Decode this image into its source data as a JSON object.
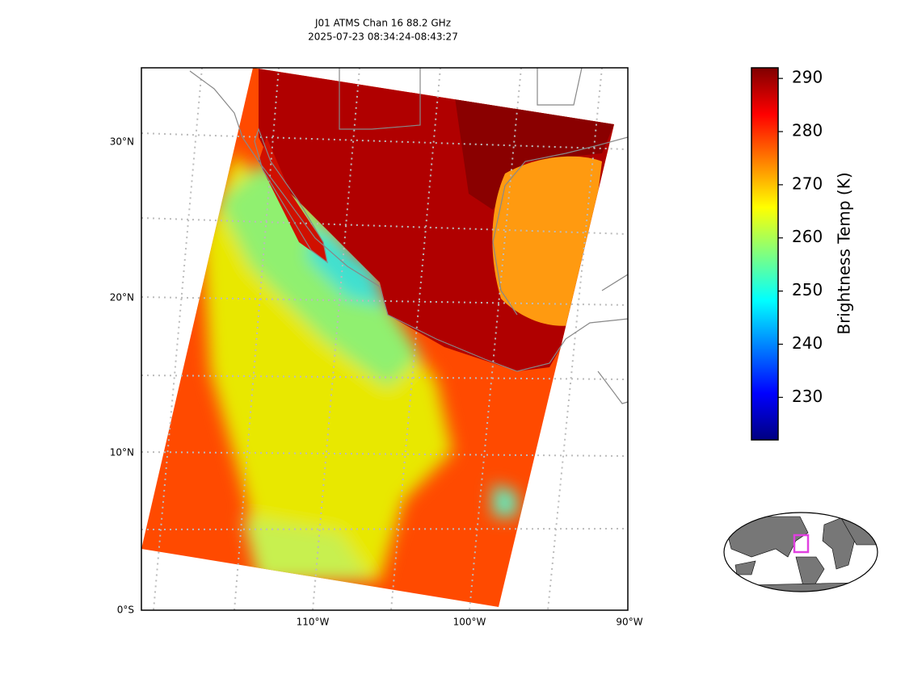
{
  "title": "J01 ATMS Chan 16 88.2 GHz",
  "subtitle": "2025-07-23 08:34:24-08:43:27",
  "map": {
    "lat_labels": [
      "0°S",
      "10°N",
      "20°N",
      "30°N"
    ],
    "lon_labels": [
      "110°W",
      "100°W",
      "90°W"
    ]
  },
  "colorbar": {
    "label": "Brightness Temp (K)",
    "lim": [
      222,
      292
    ],
    "ticks": [
      230,
      240,
      250,
      260,
      270,
      280,
      290
    ]
  }
}
